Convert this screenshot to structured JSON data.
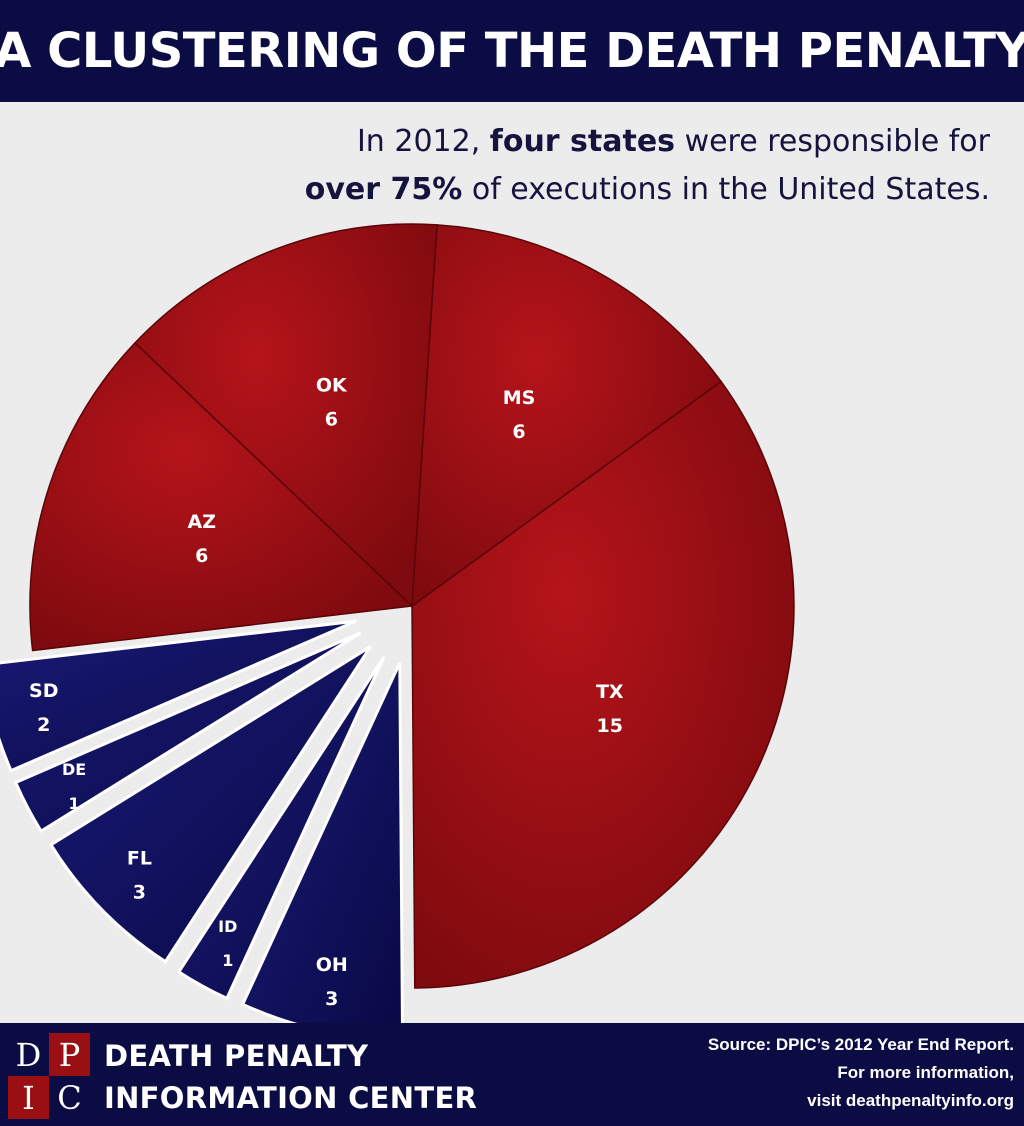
{
  "banner": {
    "title": "A CLUSTERING OF THE DEATH PENALTY"
  },
  "subtitle": {
    "line1_pre": "In 2012, ",
    "line1_bold": "four states",
    "line1_post": " were responsible for",
    "line2_bold": "over 75%",
    "line2_post": " of executions in the United States."
  },
  "colors": {
    "banner_bg": "#0c0c45",
    "red_slice": "#a01116",
    "blue_slice": "#0f0f5a",
    "background": "#ececec"
  },
  "chart_data": {
    "type": "pie",
    "title": "",
    "slices": [
      {
        "label": "TX",
        "value": 15,
        "group": "top4"
      },
      {
        "label": "OH",
        "value": 3,
        "group": "other"
      },
      {
        "label": "ID",
        "value": 1,
        "group": "other"
      },
      {
        "label": "FL",
        "value": 3,
        "group": "other"
      },
      {
        "label": "DE",
        "value": 1,
        "group": "other"
      },
      {
        "label": "SD",
        "value": 2,
        "group": "other"
      },
      {
        "label": "AZ",
        "value": 6,
        "group": "top4"
      },
      {
        "label": "OK",
        "value": 6,
        "group": "top4"
      },
      {
        "label": "MS",
        "value": 6,
        "group": "top4"
      }
    ]
  },
  "footer": {
    "logo_letters": [
      "D",
      "P",
      "I",
      "C"
    ],
    "org_line1": "DEATH PENALTY",
    "org_line2": "INFORMATION CENTER",
    "source_line1": "Source: DPIC’s 2012 Year End Report.",
    "source_line2": "For more information,",
    "source_line3": "visit deathpenaltyinfo.org"
  }
}
